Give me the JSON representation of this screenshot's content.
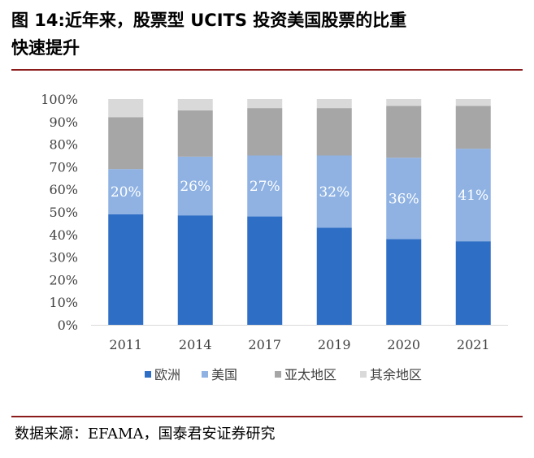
{
  "title_line1": "图 14:近年来，股票型 UCITS 投资美国股票的比重",
  "title_line2": "快速提升",
  "source": "数据来源：EFAMA，国泰君安证券研究",
  "chart_data": {
    "type": "bar",
    "stacked": true,
    "categories": [
      "2011",
      "2014",
      "2017",
      "2019",
      "2020",
      "2021"
    ],
    "series": [
      {
        "name": "欧洲",
        "color": "#2e6ec4",
        "values": [
          49,
          48.5,
          48,
          43,
          38,
          37
        ]
      },
      {
        "name": "美国",
        "color": "#8fb2e3",
        "values": [
          20,
          26,
          27,
          32,
          36,
          41
        ]
      },
      {
        "name": "亚太地区",
        "color": "#a6a6a6",
        "values": [
          23,
          20.5,
          21,
          21,
          23,
          19
        ]
      },
      {
        "name": "其余地区",
        "color": "#d9d9d9",
        "values": [
          8,
          5,
          4,
          4,
          3,
          3
        ]
      }
    ],
    "data_labels": [
      "20%",
      "26%",
      "27%",
      "32%",
      "36%",
      "41%"
    ],
    "y_ticks": [
      "0%",
      "10%",
      "20%",
      "30%",
      "40%",
      "50%",
      "60%",
      "70%",
      "80%",
      "90%",
      "100%"
    ],
    "ylim": [
      0,
      100
    ],
    "grid": false,
    "legend_position": "bottom"
  }
}
